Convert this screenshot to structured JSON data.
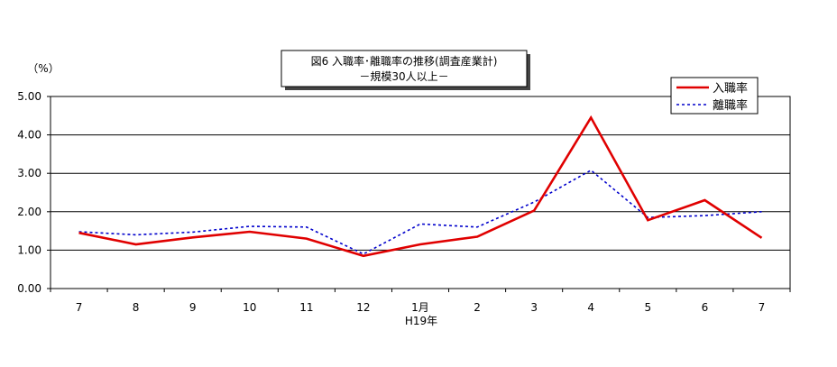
{
  "chart_data": {
    "type": "line",
    "title": "図6  入職率･離職率の推移(調査産業計)",
    "subtitle": "－規模30人以上－",
    "unit_label": "（%）",
    "xlabel_sub": "H19年",
    "categories": [
      "7",
      "8",
      "9",
      "10",
      "11",
      "12",
      "1月",
      "2",
      "3",
      "4",
      "5",
      "6",
      "7"
    ],
    "ylim": [
      0,
      5
    ],
    "yticks": [
      "0.00",
      "1.00",
      "2.00",
      "3.00",
      "4.00",
      "5.00"
    ],
    "grid": true,
    "legend_position": "top-right",
    "series": [
      {
        "name": "入職率",
        "color": "#e00000",
        "style": "solid",
        "values": [
          1.45,
          1.15,
          1.33,
          1.48,
          1.3,
          0.85,
          1.15,
          1.35,
          2.03,
          4.45,
          1.78,
          2.3,
          1.32
        ]
      },
      {
        "name": "離職率",
        "color": "#0000cc",
        "style": "dotted",
        "values": [
          1.48,
          1.4,
          1.47,
          1.62,
          1.6,
          0.9,
          1.68,
          1.6,
          2.25,
          3.08,
          1.85,
          1.9,
          2.0
        ]
      }
    ]
  }
}
